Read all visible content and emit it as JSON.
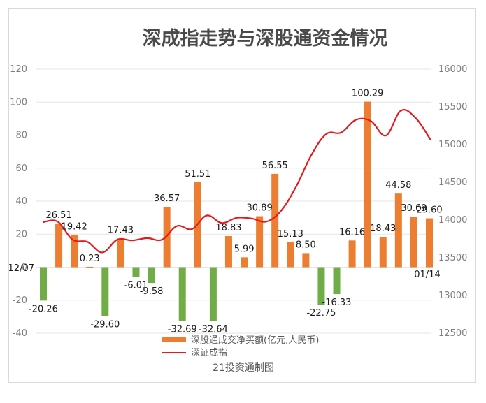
{
  "chart_data": {
    "type": "bar",
    "title": "深成指走势与深股通资金情况",
    "credit": "21投资通制图",
    "first_date_label": "12/07",
    "last_date_label": "01/14",
    "legend": [
      {
        "name": "深股通成交净买额(亿元,人民币)",
        "color": "#ed7d31",
        "kind": "bar"
      },
      {
        "name": "深证成指",
        "color": "#e31a1c",
        "kind": "line"
      }
    ],
    "colors": {
      "positive": "#ed7d31",
      "negative": "#70ad47",
      "line": "#e31a1c"
    },
    "y_left": {
      "min": -40,
      "max": 120,
      "ticks": [
        "-40",
        "-20",
        "0",
        "20",
        "40",
        "60",
        "80",
        "100",
        "120"
      ]
    },
    "y_right": {
      "min": 12500,
      "max": 16000,
      "ticks": [
        "12500",
        "13000",
        "13500",
        "14000",
        "14500",
        "15000",
        "15500",
        "16000"
      ]
    },
    "series": [
      {
        "name": "深股通成交净买额(亿元,人民币)",
        "type": "bar",
        "values": [
          -20.26,
          26.51,
          19.42,
          0.23,
          -29.6,
          17.43,
          -6.01,
          -9.58,
          36.57,
          -32.69,
          51.51,
          -32.64,
          18.83,
          5.99,
          30.89,
          56.55,
          15.13,
          8.5,
          -22.75,
          -16.33,
          16.16,
          100.29,
          18.43,
          44.58,
          30.69,
          29.6
        ],
        "labels": [
          "-20.26",
          "26.51",
          "19.42",
          "0.23",
          "-29.60",
          "17.43",
          "-6.01",
          "-9.58",
          "36.57",
          "-32.69",
          "51.51",
          "-32.64",
          "18.83",
          "5.99",
          "30.89",
          "56.55",
          "15.13",
          "8.50",
          "-22.75",
          "-16.33",
          "16.16",
          "100.29",
          "18.43",
          "44.58",
          "30.69",
          "29.60"
        ]
      },
      {
        "name": "深证成指",
        "type": "line",
        "values": [
          13970,
          13980,
          13740,
          13710,
          13570,
          13740,
          13730,
          13760,
          13740,
          13920,
          13880,
          14060,
          13960,
          14030,
          14020,
          13980,
          14130,
          14450,
          14860,
          15140,
          15160,
          15330,
          15310,
          15120,
          15450,
          15350,
          15060
        ]
      }
    ]
  }
}
